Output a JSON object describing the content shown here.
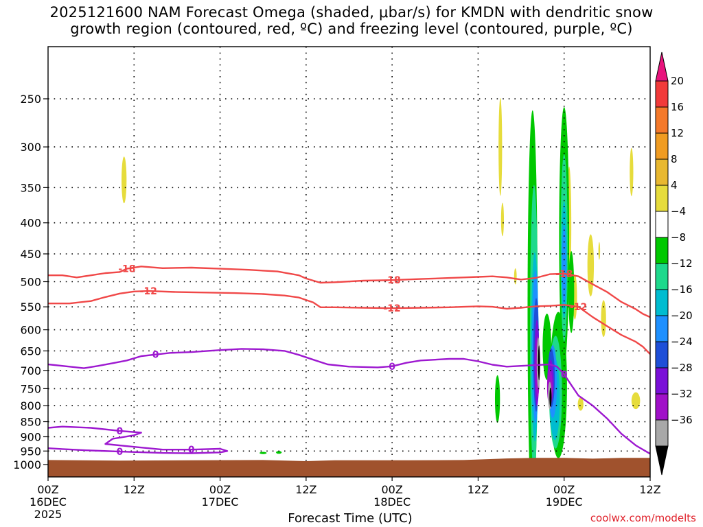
{
  "title_line1": "2025121600 NAM Forecast Omega (shaded, μbar/s) for KMDN with dendritic snow",
  "title_line2": "growth region (contoured, red, ºC) and freezing level (contoured, purple, ºC)",
  "credit": "coolwx.com/modelts",
  "chart_data": {
    "type": "heatmap",
    "title": "2025121600 NAM Forecast Omega (shaded, μbar/s) for KMDN with dendritic snow growth region (contoured, red, ºC) and freezing level (contoured, purple, ºC)",
    "xlabel": "Forecast Time (UTC)",
    "ylabel": "",
    "x_range_hours": [
      0,
      84
    ],
    "x_ticks": [
      {
        "hour": 0,
        "label": "00Z",
        "sub": "16DEC",
        "sub2": "2025"
      },
      {
        "hour": 12,
        "label": "12Z"
      },
      {
        "hour": 24,
        "label": "00Z",
        "sub": "17DEC"
      },
      {
        "hour": 36,
        "label": "12Z"
      },
      {
        "hour": 48,
        "label": "00Z",
        "sub": "18DEC"
      },
      {
        "hour": 60,
        "label": "12Z"
      },
      {
        "hour": 72,
        "label": "00Z",
        "sub": "19DEC"
      },
      {
        "hour": 84,
        "label": "12Z"
      }
    ],
    "y_axis": "pressure (hPa), reversed, log",
    "y_ticks": [
      250,
      300,
      350,
      400,
      450,
      500,
      550,
      600,
      650,
      700,
      750,
      800,
      850,
      900,
      950,
      1000
    ],
    "grid": true,
    "colorbar": {
      "labels": [
        "20",
        "16",
        "12",
        "8",
        "4",
        "−4",
        "−8",
        "−12",
        "−16",
        "−20",
        "−24",
        "−28",
        "−32",
        "−36"
      ],
      "colors": [
        "#e8137c",
        "#f23a3a",
        "#f5792a",
        "#f09c22",
        "#e8b830",
        "#e6dc3c",
        "#ffffff",
        "#00c800",
        "#1ed98c",
        "#00bcd0",
        "#1e90ff",
        "#1e4fd8",
        "#7a10d8",
        "#a010c8",
        "#a8a8a8",
        "#000000"
      ]
    },
    "contours_red": [
      {
        "label": "-18",
        "points": [
          [
            0,
            488
          ],
          [
            2,
            488
          ],
          [
            4,
            492
          ],
          [
            6,
            488
          ],
          [
            8,
            484
          ],
          [
            10,
            482
          ],
          [
            11,
            476
          ],
          [
            13,
            472
          ],
          [
            16,
            475
          ],
          [
            20,
            474
          ],
          [
            24,
            476
          ],
          [
            28,
            478
          ],
          [
            32,
            481
          ],
          [
            35,
            488
          ],
          [
            36,
            494
          ],
          [
            38,
            502
          ],
          [
            40,
            501
          ],
          [
            44,
            498
          ],
          [
            48,
            497
          ],
          [
            52,
            495
          ],
          [
            56,
            493
          ],
          [
            58,
            492
          ],
          [
            60,
            491
          ],
          [
            62,
            490
          ],
          [
            64,
            492
          ],
          [
            66,
            496
          ],
          [
            68,
            493
          ],
          [
            70,
            486
          ],
          [
            72,
            485
          ],
          [
            74,
            490
          ],
          [
            76,
            505
          ],
          [
            78,
            520
          ],
          [
            80,
            540
          ],
          [
            82,
            555
          ],
          [
            83,
            565
          ],
          [
            84,
            572
          ]
        ]
      },
      {
        "label": "-12",
        "points": [
          [
            0,
            543
          ],
          [
            3,
            543
          ],
          [
            6,
            538
          ],
          [
            8,
            530
          ],
          [
            10,
            523
          ],
          [
            12,
            519
          ],
          [
            14,
            518
          ],
          [
            18,
            520
          ],
          [
            22,
            521
          ],
          [
            26,
            522
          ],
          [
            30,
            524
          ],
          [
            33,
            527
          ],
          [
            35,
            531
          ],
          [
            37,
            541
          ],
          [
            38,
            551
          ],
          [
            40,
            551
          ],
          [
            44,
            552
          ],
          [
            48,
            553
          ],
          [
            52,
            552
          ],
          [
            56,
            551
          ],
          [
            58,
            550
          ],
          [
            60,
            549
          ],
          [
            62,
            550
          ],
          [
            64,
            554
          ],
          [
            66,
            552
          ],
          [
            68,
            549
          ],
          [
            70,
            548
          ],
          [
            72,
            546
          ],
          [
            74,
            550
          ],
          [
            76,
            572
          ],
          [
            78,
            592
          ],
          [
            80,
            612
          ],
          [
            82,
            628
          ],
          [
            83,
            640
          ],
          [
            84,
            658
          ]
        ]
      }
    ],
    "contours_purple": [
      {
        "label": "0",
        "points": [
          [
            0,
            684
          ],
          [
            3,
            690
          ],
          [
            5,
            694
          ],
          [
            7,
            688
          ],
          [
            9,
            681
          ],
          [
            11,
            674
          ],
          [
            13,
            663
          ],
          [
            15,
            659
          ],
          [
            17,
            655
          ],
          [
            20,
            653
          ],
          [
            24,
            648
          ],
          [
            27,
            645
          ],
          [
            30,
            646
          ],
          [
            33,
            650
          ],
          [
            35,
            660
          ],
          [
            37,
            672
          ],
          [
            39,
            684
          ],
          [
            42,
            690
          ],
          [
            46,
            692
          ],
          [
            48,
            689
          ],
          [
            50,
            680
          ],
          [
            52,
            674
          ],
          [
            56,
            670
          ],
          [
            58,
            670
          ],
          [
            60,
            676
          ],
          [
            62,
            685
          ],
          [
            64,
            690
          ],
          [
            66,
            688
          ],
          [
            68,
            686
          ],
          [
            70,
            684
          ],
          [
            71,
            690
          ],
          [
            72,
            710
          ],
          [
            73,
            740
          ],
          [
            74,
            770
          ],
          [
            76,
            800
          ],
          [
            78,
            840
          ],
          [
            80,
            890
          ],
          [
            82,
            930
          ],
          [
            84,
            960
          ]
        ]
      },
      {
        "label": "0",
        "points": [
          [
            0,
            870
          ],
          [
            2,
            866
          ],
          [
            6,
            870
          ],
          [
            10,
            880
          ],
          [
            13,
            886
          ],
          [
            12,
            895
          ],
          [
            9,
            907
          ],
          [
            8,
            925
          ],
          [
            12,
            935
          ],
          [
            16,
            945
          ],
          [
            20,
            945
          ],
          [
            24,
            942
          ],
          [
            25,
            950
          ],
          [
            24,
            955
          ],
          [
            20,
            958
          ],
          [
            16,
            957
          ],
          [
            10,
            952
          ],
          [
            6,
            948
          ],
          [
            2,
            943
          ],
          [
            0,
            940
          ]
        ]
      }
    ],
    "omega_notes": "Strong upward motion (negative omega, down to about -36 μbar/s) between forecast hours 62 and 74 through 250-950 hPa; weak positive omega (4-8) patches near hours 10, 63, 72 and 80-83."
  }
}
